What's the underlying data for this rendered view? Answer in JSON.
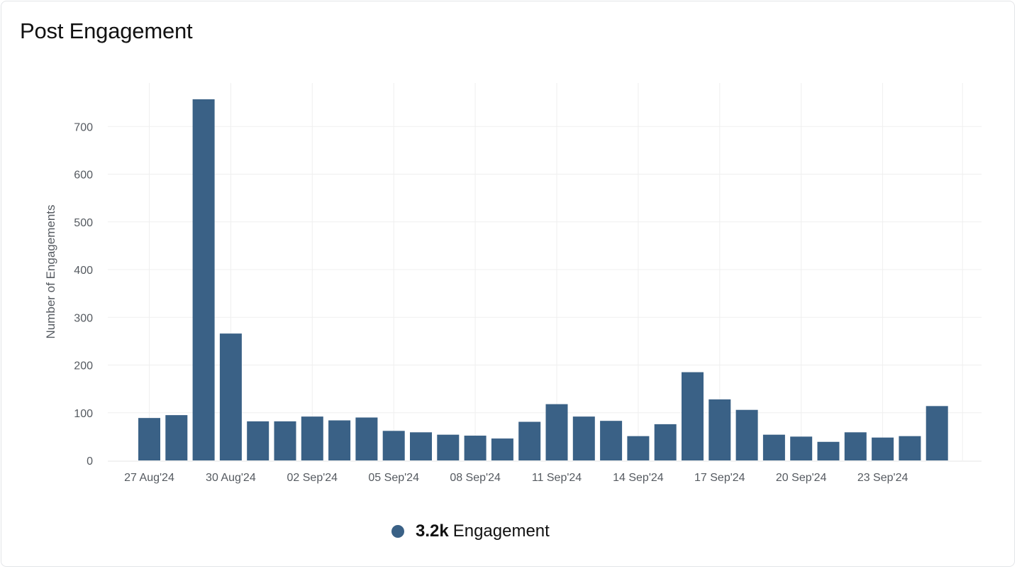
{
  "title": "Post Engagement",
  "legend": {
    "value": "3.2k",
    "label": "Engagement"
  },
  "colors": {
    "bar": "#3a6186",
    "grid": "#efefef",
    "text": "#555a60"
  },
  "chart_data": {
    "type": "bar",
    "title": "Post Engagement",
    "xlabel": "",
    "ylabel": "Number of Engagements",
    "ylim": [
      0,
      790
    ],
    "yticks": [
      0,
      100,
      200,
      300,
      400,
      500,
      600,
      700
    ],
    "grid": true,
    "legend_position": "bottom",
    "categories": [
      "27 Aug'24",
      "28 Aug'24",
      "29 Aug'24",
      "30 Aug'24",
      "31 Aug'24",
      "01 Sep'24",
      "02 Sep'24",
      "03 Sep'24",
      "04 Sep'24",
      "05 Sep'24",
      "06 Sep'24",
      "07 Sep'24",
      "08 Sep'24",
      "09 Sep'24",
      "10 Sep'24",
      "11 Sep'24",
      "12 Sep'24",
      "13 Sep'24",
      "14 Sep'24",
      "15 Sep'24",
      "16 Sep'24",
      "17 Sep'24",
      "18 Sep'24",
      "19 Sep'24",
      "20 Sep'24",
      "21 Sep'24",
      "22 Sep'24",
      "23 Sep'24",
      "24 Sep'24",
      "25 Sep'24"
    ],
    "xtick_labels": [
      "27 Aug'24",
      "30 Aug'24",
      "02 Sep'24",
      "05 Sep'24",
      "08 Sep'24",
      "11 Sep'24",
      "14 Sep'24",
      "17 Sep'24",
      "20 Sep'24",
      "23 Sep'24"
    ],
    "series": [
      {
        "name": "Engagement",
        "values": [
          89,
          95,
          757,
          266,
          82,
          82,
          92,
          84,
          90,
          62,
          59,
          54,
          52,
          46,
          81,
          118,
          92,
          83,
          51,
          76,
          185,
          128,
          106,
          54,
          50,
          39,
          59,
          48,
          51,
          114
        ]
      }
    ]
  }
}
